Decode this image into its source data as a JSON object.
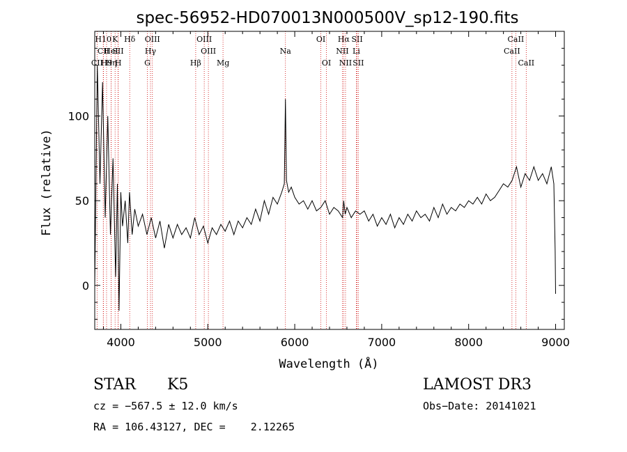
{
  "chart_data": {
    "type": "line",
    "title": "spec-56952-HD070013N000500V_sp12-190.fits",
    "xlabel": "Wavelength (Å)",
    "ylabel": "Flux (relative)",
    "xlim": [
      3700,
      9100
    ],
    "ylim": [
      -26,
      150
    ],
    "xticks": [
      4000,
      5000,
      6000,
      7000,
      8000,
      9000
    ],
    "yticks": [
      0,
      50,
      100
    ],
    "series": [
      {
        "name": "flux",
        "x": [
          3700,
          3730,
          3760,
          3790,
          3820,
          3850,
          3880,
          3910,
          3940,
          3960,
          3980,
          4000,
          4020,
          4050,
          4080,
          4100,
          4130,
          4160,
          4200,
          4250,
          4300,
          4350,
          4400,
          4450,
          4500,
          4550,
          4600,
          4650,
          4700,
          4750,
          4800,
          4850,
          4900,
          4950,
          5000,
          5050,
          5100,
          5150,
          5200,
          5250,
          5300,
          5350,
          5400,
          5450,
          5500,
          5550,
          5600,
          5650,
          5700,
          5750,
          5800,
          5850,
          5880,
          5893,
          5905,
          5930,
          5960,
          6000,
          6050,
          6100,
          6150,
          6200,
          6250,
          6300,
          6350,
          6400,
          6450,
          6500,
          6550,
          6563,
          6580,
          6600,
          6650,
          6700,
          6750,
          6800,
          6850,
          6900,
          6950,
          7000,
          7050,
          7100,
          7150,
          7200,
          7250,
          7300,
          7350,
          7400,
          7450,
          7500,
          7550,
          7600,
          7650,
          7700,
          7750,
          7800,
          7850,
          7900,
          7950,
          8000,
          8050,
          8100,
          8150,
          8200,
          8250,
          8300,
          8350,
          8400,
          8450,
          8500,
          8550,
          8600,
          8650,
          8700,
          8750,
          8800,
          8850,
          8900,
          8950,
          8980,
          8995,
          9000
        ],
        "y": [
          0,
          130,
          60,
          120,
          40,
          100,
          30,
          75,
          5,
          60,
          -15,
          55,
          35,
          50,
          25,
          55,
          30,
          45,
          35,
          42,
          30,
          40,
          28,
          38,
          22,
          36,
          28,
          36,
          30,
          34,
          28,
          40,
          30,
          35,
          25,
          34,
          30,
          36,
          32,
          38,
          30,
          38,
          34,
          40,
          36,
          45,
          38,
          50,
          42,
          52,
          48,
          55,
          60,
          110,
          62,
          55,
          58,
          52,
          48,
          50,
          45,
          50,
          44,
          46,
          50,
          42,
          46,
          44,
          40,
          50,
          42,
          46,
          40,
          44,
          42,
          44,
          38,
          42,
          35,
          40,
          36,
          42,
          34,
          40,
          36,
          42,
          38,
          44,
          40,
          42,
          38,
          46,
          40,
          48,
          42,
          46,
          44,
          48,
          46,
          50,
          48,
          52,
          48,
          54,
          50,
          52,
          56,
          60,
          58,
          62,
          70,
          58,
          66,
          62,
          70,
          62,
          66,
          60,
          70,
          60,
          20,
          -5
        ]
      }
    ],
    "lines": [
      {
        "name": "CII",
        "wavelength": 3727,
        "row": 3
      },
      {
        "name": "H10",
        "wavelength": 3798,
        "row": 1
      },
      {
        "name": "CII",
        "wavelength": 3800,
        "row": 2
      },
      {
        "name": "H9",
        "wavelength": 3836,
        "row": 3
      },
      {
        "name": "K",
        "wavelength": 3934,
        "row": 1
      },
      {
        "name": "HeI",
        "wavelength": 3888,
        "row": 2
      },
      {
        "name": "Hη",
        "wavelength": 3889,
        "row": 3
      },
      {
        "name": "SII",
        "wavelength": 3968,
        "row": 2
      },
      {
        "name": "H",
        "wavelength": 3970,
        "row": 3
      },
      {
        "name": "Hδ",
        "wavelength": 4102,
        "row": 1
      },
      {
        "name": "OIII",
        "wavelength": 4363,
        "row": 1
      },
      {
        "name": "Hγ",
        "wavelength": 4341,
        "row": 2
      },
      {
        "name": "G",
        "wavelength": 4305,
        "row": 3
      },
      {
        "name": "Hβ",
        "wavelength": 4861,
        "row": 3
      },
      {
        "name": "OIII",
        "wavelength": 4959,
        "row": 1
      },
      {
        "name": "OIII",
        "wavelength": 5007,
        "row": 2
      },
      {
        "name": "Mg",
        "wavelength": 5175,
        "row": 3
      },
      {
        "name": "Na",
        "wavelength": 5893,
        "row": 2
      },
      {
        "name": "OI",
        "wavelength": 6300,
        "row": 1
      },
      {
        "name": "OI",
        "wavelength": 6364,
        "row": 3
      },
      {
        "name": "Hα",
        "wavelength": 6563,
        "row": 1
      },
      {
        "name": "NII",
        "wavelength": 6548,
        "row": 2
      },
      {
        "name": "NII",
        "wavelength": 6584,
        "row": 3
      },
      {
        "name": "SII",
        "wavelength": 6717,
        "row": 1
      },
      {
        "name": "Li",
        "wavelength": 6708,
        "row": 2
      },
      {
        "name": "SII",
        "wavelength": 6731,
        "row": 3
      },
      {
        "name": "CaII",
        "wavelength": 8542,
        "row": 1
      },
      {
        "name": "CaII",
        "wavelength": 8498,
        "row": 2
      },
      {
        "name": "CaII",
        "wavelength": 8662,
        "row": 3
      }
    ]
  },
  "info": {
    "object_class": "STAR",
    "subclass": "K5",
    "survey": "LAMOST DR3",
    "redshift": "cz = −567.5 ± 12.0 km/s",
    "obs_date": "Obs−Date: 20141021",
    "coords": "RA = 106.43127, DEC =    2.12265"
  },
  "colors": {
    "axes": "#000000",
    "line_marker": "#cc0000"
  }
}
